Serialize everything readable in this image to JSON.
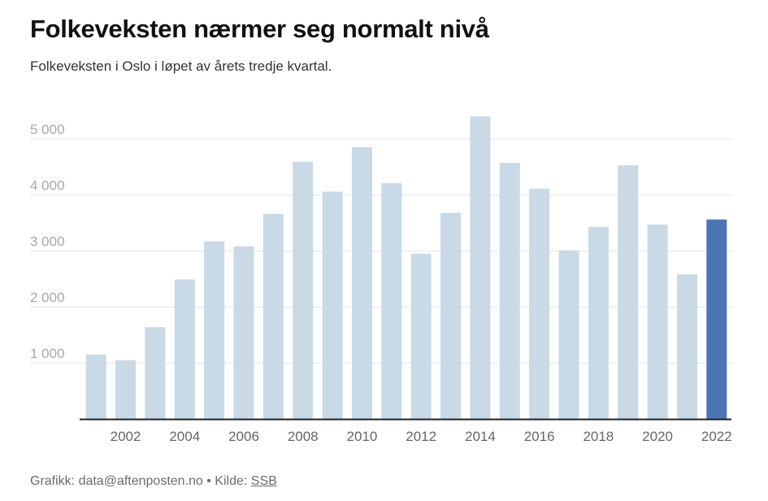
{
  "title": "Folkeveksten nærmer seg normalt nivå",
  "subtitle": "Folkeveksten i Oslo i løpet av årets tredje kvartal.",
  "footer": {
    "credit": "Grafikk: data@aftenposten.no • Kilde: ",
    "source": "SSB"
  },
  "colors": {
    "bar": "#c9d9e5",
    "highlight": "#4e74b6",
    "grid": "#e3e3e3",
    "axis": "#222222",
    "ticks": "#a8a8a8",
    "xticks": "#666666"
  },
  "chart_data": {
    "type": "bar",
    "title": "Folkeveksten nærmer seg normalt nivå",
    "subtitle": "Folkeveksten i Oslo i løpet av årets tredje kvartal.",
    "categories": [
      2001,
      2002,
      2003,
      2004,
      2005,
      2006,
      2007,
      2008,
      2009,
      2010,
      2011,
      2012,
      2013,
      2014,
      2015,
      2016,
      2017,
      2018,
      2019,
      2020,
      2021,
      2022
    ],
    "values": [
      1150,
      1050,
      1640,
      2490,
      3170,
      3080,
      3660,
      4590,
      4060,
      4850,
      4210,
      2950,
      3680,
      5400,
      4570,
      4110,
      3010,
      3430,
      4530,
      3470,
      2580,
      3560
    ],
    "highlight_category": 2022,
    "xtick_labels": [
      "2002",
      "2004",
      "2006",
      "2008",
      "2010",
      "2012",
      "2014",
      "2016",
      "2018",
      "2020",
      "2022"
    ],
    "ytick_values": [
      1000,
      2000,
      3000,
      4000,
      5000
    ],
    "ytick_labels": [
      "1 000",
      "2 000",
      "3 000",
      "4 000",
      "5 000"
    ],
    "ylim": [
      0,
      5600
    ],
    "xlabel": "",
    "ylabel": "",
    "grid": true,
    "legend": "none"
  }
}
